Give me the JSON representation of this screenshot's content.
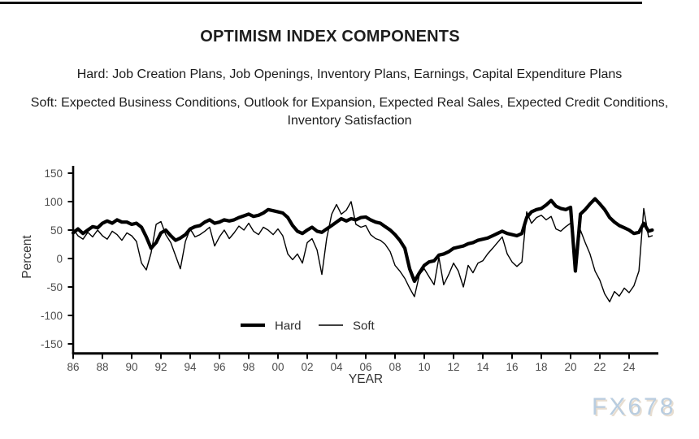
{
  "page": {
    "title": "OPTIMISM INDEX COMPONENTS",
    "subtitle_hard": "Hard: Job Creation Plans, Job Openings, Inventory Plans, Earnings, Capital Expenditure Plans",
    "subtitle_soft": "Soft: Expected Business Conditions, Outlook for Expansion, Expected Real Sales, Expected Credit Conditions, Inventory Satisfaction",
    "watermark": "FX678"
  },
  "colors": {
    "line_color": "#000000",
    "tick_text": "#4d4d4d",
    "axis_text": "#333333",
    "watermark_blue": "#b9cde0"
  },
  "chart_data": {
    "type": "line",
    "title": "OPTIMISM INDEX COMPONENTS",
    "xlabel": "YEAR",
    "ylabel": "Percent",
    "ylim": [
      -150,
      150
    ],
    "xlim": [
      1986,
      2026
    ],
    "grid": false,
    "legend_position": "bottom-center-inside",
    "y_ticks": [
      150,
      100,
      50,
      0,
      -50,
      -100,
      -150
    ],
    "x_ticks": [
      {
        "label": "86",
        "year": 1986
      },
      {
        "label": "88",
        "year": 1988
      },
      {
        "label": "90",
        "year": 1990
      },
      {
        "label": "92",
        "year": 1992
      },
      {
        "label": "94",
        "year": 1994
      },
      {
        "label": "96",
        "year": 1996
      },
      {
        "label": "98",
        "year": 1998
      },
      {
        "label": "00",
        "year": 2000
      },
      {
        "label": "02",
        "year": 2002
      },
      {
        "label": "04",
        "year": 2004
      },
      {
        "label": "06",
        "year": 2006
      },
      {
        "label": "08",
        "year": 2008
      },
      {
        "label": "10",
        "year": 2010
      },
      {
        "label": "12",
        "year": 2012
      },
      {
        "label": "14",
        "year": 2014
      },
      {
        "label": "16",
        "year": 2016
      },
      {
        "label": "18",
        "year": 2018
      },
      {
        "label": "20",
        "year": 2020
      },
      {
        "label": "22",
        "year": 2022
      },
      {
        "label": "24",
        "year": 2024
      }
    ],
    "x": [
      1986,
      1986.33,
      1986.67,
      1987,
      1987.33,
      1987.67,
      1988,
      1988.33,
      1988.67,
      1989,
      1989.33,
      1989.67,
      1990,
      1990.33,
      1990.67,
      1991,
      1991.33,
      1991.67,
      1992,
      1992.33,
      1992.67,
      1993,
      1993.33,
      1993.67,
      1994,
      1994.33,
      1994.67,
      1995,
      1995.33,
      1995.67,
      1996,
      1996.33,
      1996.67,
      1997,
      1997.33,
      1997.67,
      1998,
      1998.33,
      1998.67,
      1999,
      1999.33,
      1999.67,
      2000,
      2000.33,
      2000.67,
      2001,
      2001.33,
      2001.67,
      2002,
      2002.33,
      2002.67,
      2003,
      2003.33,
      2003.67,
      2004,
      2004.33,
      2004.67,
      2005,
      2005.33,
      2005.67,
      2006,
      2006.33,
      2006.67,
      2007,
      2007.33,
      2007.67,
      2008,
      2008.33,
      2008.67,
      2009,
      2009.33,
      2009.67,
      2010,
      2010.33,
      2010.67,
      2011,
      2011.33,
      2011.67,
      2012,
      2012.33,
      2012.67,
      2013,
      2013.33,
      2013.67,
      2014,
      2014.33,
      2014.67,
      2015,
      2015.33,
      2015.67,
      2016,
      2016.33,
      2016.67,
      2017,
      2017.33,
      2017.67,
      2018,
      2018.33,
      2018.67,
      2019,
      2019.33,
      2019.67,
      2020,
      2020.33,
      2020.67,
      2021,
      2021.33,
      2021.67,
      2022,
      2022.33,
      2022.67,
      2023,
      2023.33,
      2023.67,
      2024,
      2024.33,
      2024.67,
      2025,
      2025.33,
      2025.58
    ],
    "series": [
      {
        "name": "Hard",
        "style": "thick",
        "color": "#000000",
        "values": [
          45,
          52,
          44,
          50,
          56,
          54,
          62,
          66,
          62,
          68,
          64,
          64,
          60,
          62,
          55,
          38,
          18,
          28,
          45,
          50,
          40,
          32,
          36,
          42,
          52,
          56,
          58,
          64,
          68,
          62,
          64,
          68,
          66,
          68,
          72,
          75,
          78,
          74,
          76,
          80,
          86,
          84,
          82,
          80,
          72,
          58,
          48,
          44,
          50,
          55,
          48,
          46,
          52,
          58,
          64,
          70,
          66,
          70,
          68,
          72,
          73,
          68,
          64,
          62,
          56,
          50,
          42,
          32,
          18,
          -18,
          -40,
          -25,
          -12,
          -6,
          -4,
          6,
          8,
          12,
          18,
          20,
          22,
          26,
          28,
          32,
          34,
          36,
          40,
          44,
          48,
          44,
          42,
          40,
          44,
          72,
          82,
          86,
          88,
          94,
          102,
          92,
          88,
          86,
          90,
          -22,
          78,
          86,
          96,
          105,
          96,
          86,
          72,
          64,
          58,
          54,
          50,
          44,
          46,
          62,
          48,
          50
        ]
      },
      {
        "name": "Soft",
        "style": "thin",
        "color": "#000000",
        "values": [
          52,
          40,
          34,
          46,
          38,
          50,
          40,
          34,
          48,
          42,
          32,
          45,
          40,
          30,
          -8,
          -20,
          10,
          60,
          65,
          42,
          28,
          5,
          -18,
          30,
          52,
          38,
          42,
          48,
          55,
          22,
          38,
          50,
          35,
          45,
          57,
          50,
          62,
          48,
          42,
          55,
          50,
          42,
          52,
          40,
          8,
          -2,
          8,
          -8,
          28,
          35,
          15,
          -28,
          35,
          78,
          95,
          78,
          85,
          100,
          60,
          55,
          58,
          42,
          35,
          32,
          25,
          12,
          -12,
          -22,
          -35,
          -52,
          -67,
          -28,
          -18,
          -32,
          -46,
          2,
          -46,
          -28,
          -8,
          -22,
          -50,
          -12,
          -25,
          -8,
          -4,
          8,
          18,
          28,
          38,
          8,
          -6,
          -14,
          -6,
          82,
          62,
          72,
          76,
          68,
          74,
          52,
          48,
          56,
          62,
          -16,
          50,
          28,
          8,
          -22,
          -38,
          -62,
          -76,
          -58,
          -66,
          -52,
          -60,
          -48,
          -22,
          88,
          38,
          40
        ]
      }
    ]
  }
}
